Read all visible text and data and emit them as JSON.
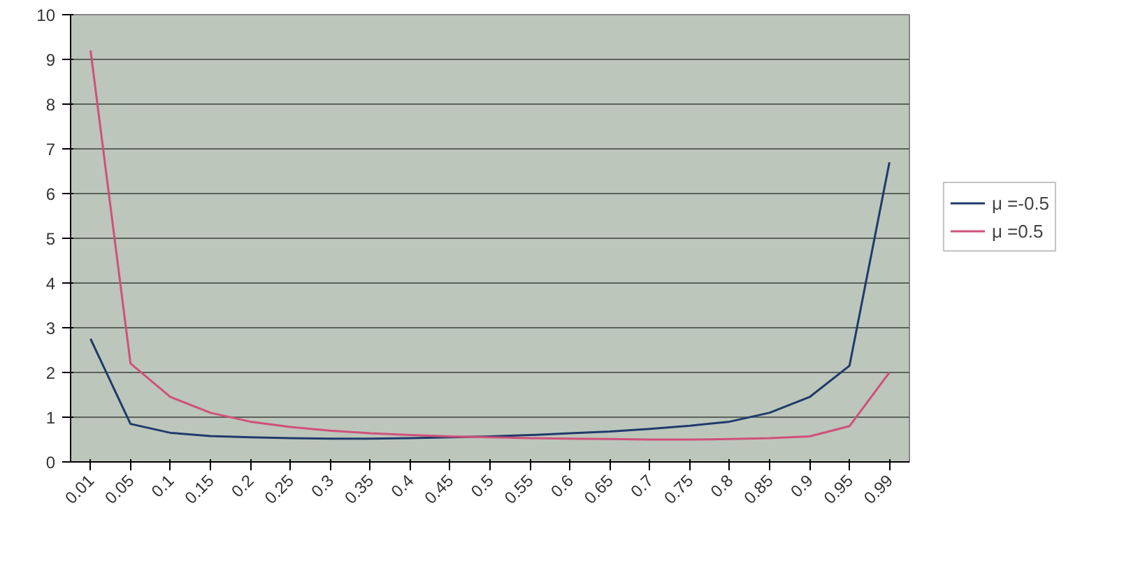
{
  "chart_data": {
    "type": "line",
    "categories": [
      "0.01",
      "0.05",
      "0.1",
      "0.15",
      "0.2",
      "0.25",
      "0.3",
      "0.35",
      "0.4",
      "0.45",
      "0.5",
      "0.55",
      "0.6",
      "0.65",
      "0.7",
      "0.75",
      "0.8",
      "0.85",
      "0.9",
      "0.95",
      "0.99"
    ],
    "series": [
      {
        "name": "μ =-0.5",
        "color": "#1f3a6b",
        "values": [
          2.75,
          0.85,
          0.65,
          0.58,
          0.55,
          0.53,
          0.52,
          0.52,
          0.53,
          0.55,
          0.57,
          0.6,
          0.64,
          0.68,
          0.74,
          0.81,
          0.9,
          1.1,
          1.45,
          2.15,
          6.7
        ]
      },
      {
        "name": "μ =0.5",
        "color": "#d0507a",
        "values": [
          9.2,
          2.2,
          1.45,
          1.1,
          0.9,
          0.78,
          0.7,
          0.64,
          0.6,
          0.57,
          0.55,
          0.53,
          0.52,
          0.51,
          0.5,
          0.5,
          0.51,
          0.53,
          0.57,
          0.8,
          2.0
        ]
      }
    ],
    "ylim": [
      0,
      10
    ],
    "yticks": [
      0,
      1,
      2,
      3,
      4,
      5,
      6,
      7,
      8,
      9,
      10
    ],
    "grid": "y",
    "legend": "right",
    "marker": "none",
    "line_style": "solid"
  }
}
